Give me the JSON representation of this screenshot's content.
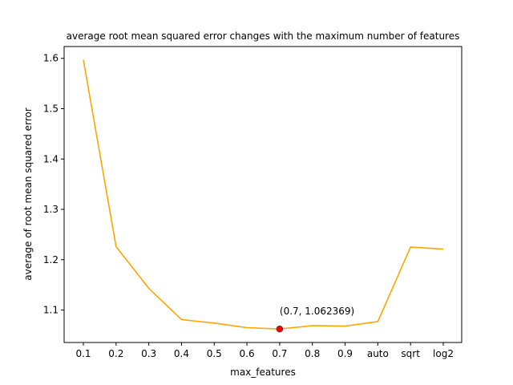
{
  "chart_data": {
    "type": "line",
    "title": "average root mean squared error changes with the maximum number of features",
    "xlabel": "max_features",
    "ylabel": "average of root mean squared error",
    "categories": [
      "0.1",
      "0.2",
      "0.3",
      "0.4",
      "0.5",
      "0.6",
      "0.7",
      "0.8",
      "0.9",
      "auto",
      "sqrt",
      "log2"
    ],
    "series": [
      {
        "values": [
          1.597,
          1.226,
          1.143,
          1.081,
          1.074,
          1.065,
          1.062369,
          1.069,
          1.068,
          1.077,
          1.225,
          1.221
        ],
        "color": "#ffa500"
      }
    ],
    "yticks": [
      1.1,
      1.2,
      1.3,
      1.4,
      1.5,
      1.6
    ],
    "ylim": [
      1.0355,
      1.6235
    ],
    "grid": false,
    "highlight": {
      "category": "0.7",
      "value": 1.062369,
      "label": "(0.7, 1.062369)",
      "color": "#ff0000"
    }
  }
}
